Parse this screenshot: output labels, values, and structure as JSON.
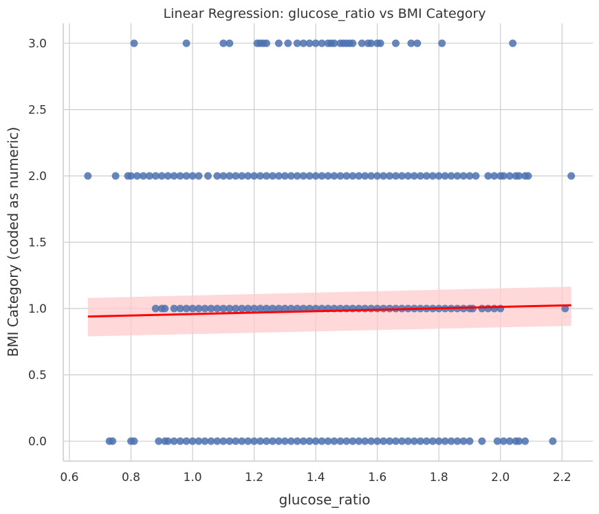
{
  "chart_data": {
    "type": "scatter",
    "title": "Linear Regression: glucose_ratio vs BMI Category",
    "xlabel": "glucose_ratio",
    "ylabel": "BMI Category (coded as numeric)",
    "xlim": [
      0.58,
      2.3
    ],
    "ylim": [
      -0.15,
      3.15
    ],
    "xticks": [
      "0.6",
      "0.8",
      "1.0",
      "1.2",
      "1.4",
      "1.6",
      "1.8",
      "2.0",
      "2.2"
    ],
    "yticks": [
      "0.0",
      "0.5",
      "1.0",
      "1.5",
      "2.0",
      "2.5",
      "3.0"
    ],
    "grid": true,
    "point_color": "#4c72b0",
    "line_color": "#ff0000",
    "band_color": "#ffcccc",
    "series": [
      {
        "values": [
          {
            "y": 3,
            "x": [
              0.81,
              0.98,
              1.1,
              1.12,
              1.21,
              1.22,
              1.23,
              1.24,
              1.28,
              1.31,
              1.34,
              1.36,
              1.38,
              1.4,
              1.42,
              1.44,
              1.45,
              1.46,
              1.48,
              1.49,
              1.5,
              1.51,
              1.52,
              1.55,
              1.57,
              1.58,
              1.6,
              1.61,
              1.66,
              1.71,
              1.73,
              1.81,
              2.04
            ]
          },
          {
            "y": 2,
            "x": [
              0.66,
              0.75,
              0.79,
              0.8,
              0.82,
              0.84,
              0.86,
              0.88,
              0.9,
              0.92,
              0.94,
              0.96,
              0.98,
              1.0,
              1.02,
              1.05,
              1.08,
              1.1,
              1.12,
              1.14,
              1.16,
              1.18,
              1.2,
              1.22,
              1.24,
              1.26,
              1.28,
              1.3,
              1.32,
              1.34,
              1.36,
              1.38,
              1.4,
              1.42,
              1.44,
              1.46,
              1.48,
              1.5,
              1.52,
              1.54,
              1.56,
              1.58,
              1.6,
              1.62,
              1.64,
              1.66,
              1.68,
              1.7,
              1.72,
              1.74,
              1.76,
              1.78,
              1.8,
              1.82,
              1.84,
              1.86,
              1.88,
              1.9,
              1.92,
              1.96,
              1.98,
              2.0,
              2.01,
              2.03,
              2.05,
              2.06,
              2.08,
              2.09,
              2.23
            ]
          },
          {
            "y": 1,
            "x": [
              0.88,
              0.9,
              0.91,
              0.94,
              0.96,
              0.98,
              1.0,
              1.02,
              1.04,
              1.06,
              1.08,
              1.1,
              1.12,
              1.14,
              1.16,
              1.18,
              1.2,
              1.22,
              1.24,
              1.26,
              1.28,
              1.3,
              1.32,
              1.34,
              1.36,
              1.38,
              1.4,
              1.42,
              1.44,
              1.46,
              1.48,
              1.5,
              1.52,
              1.54,
              1.56,
              1.58,
              1.6,
              1.62,
              1.64,
              1.66,
              1.68,
              1.7,
              1.72,
              1.74,
              1.76,
              1.78,
              1.8,
              1.82,
              1.84,
              1.86,
              1.88,
              1.9,
              1.91,
              1.94,
              1.96,
              1.98,
              2.0,
              2.21
            ]
          },
          {
            "y": 0,
            "x": [
              0.73,
              0.74,
              0.8,
              0.81,
              0.89,
              0.91,
              0.92,
              0.94,
              0.96,
              0.98,
              1.0,
              1.02,
              1.04,
              1.06,
              1.08,
              1.1,
              1.12,
              1.14,
              1.16,
              1.18,
              1.2,
              1.22,
              1.24,
              1.26,
              1.28,
              1.3,
              1.32,
              1.34,
              1.36,
              1.38,
              1.4,
              1.42,
              1.44,
              1.46,
              1.48,
              1.5,
              1.52,
              1.54,
              1.56,
              1.58,
              1.6,
              1.62,
              1.64,
              1.66,
              1.68,
              1.7,
              1.72,
              1.74,
              1.76,
              1.78,
              1.8,
              1.82,
              1.84,
              1.86,
              1.88,
              1.9,
              1.94,
              1.99,
              2.01,
              2.03,
              2.05,
              2.06,
              2.08,
              2.17
            ]
          }
        ]
      }
    ],
    "regression": {
      "x": [
        0.66,
        2.23
      ],
      "y": [
        0.94,
        1.025
      ],
      "ci_upper": [
        1.08,
        1.165
      ],
      "ci_lower": [
        0.79,
        0.87
      ]
    }
  }
}
